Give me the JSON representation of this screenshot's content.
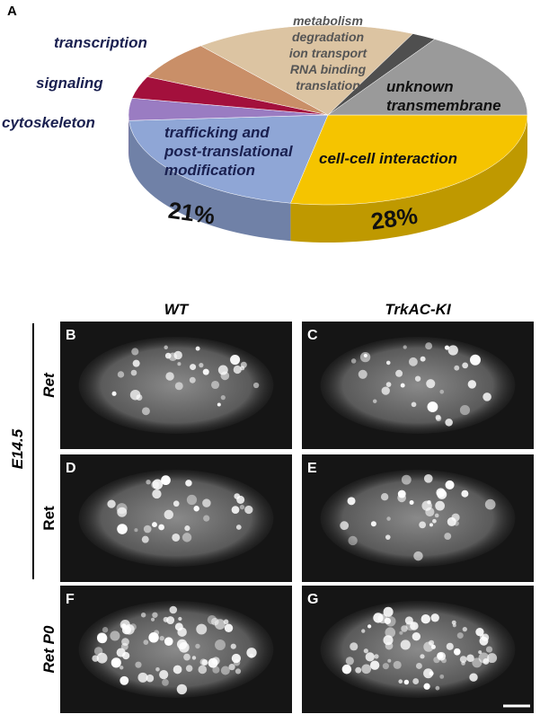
{
  "figure_label": "A",
  "chart_data": {
    "type": "pie",
    "categories": [
      [
        "cell-cell interaction"
      ],
      [
        "trafficking and",
        "post-translational",
        "modification"
      ],
      [
        "cytoskeleton"
      ],
      [
        "signaling"
      ],
      [
        "transcription"
      ],
      [
        "metabolism",
        "degradation",
        "ion transport",
        "RNA binding",
        "translation"
      ],
      null,
      [
        "unknown",
        "transmembrane"
      ]
    ],
    "values": [
      28,
      21,
      4,
      4,
      7,
      18,
      2,
      16
    ],
    "value_labels": [
      "28%",
      "21%",
      null,
      null,
      null,
      null,
      null,
      null
    ],
    "colors": [
      "#f5c400",
      "#8fa6d6",
      "#9a7cc2",
      "#a3103c",
      "#c98f68",
      "#dcc4a2",
      "#4f4f4f",
      "#9a9a9a"
    ]
  },
  "columns": [
    "WT",
    "TrkAC-KI"
  ],
  "group_label": "E14.5",
  "rows": [
    "Ret",
    "Ret",
    "Ret P0"
  ],
  "panels": [
    "B",
    "C",
    "D",
    "E",
    "F",
    "G"
  ]
}
